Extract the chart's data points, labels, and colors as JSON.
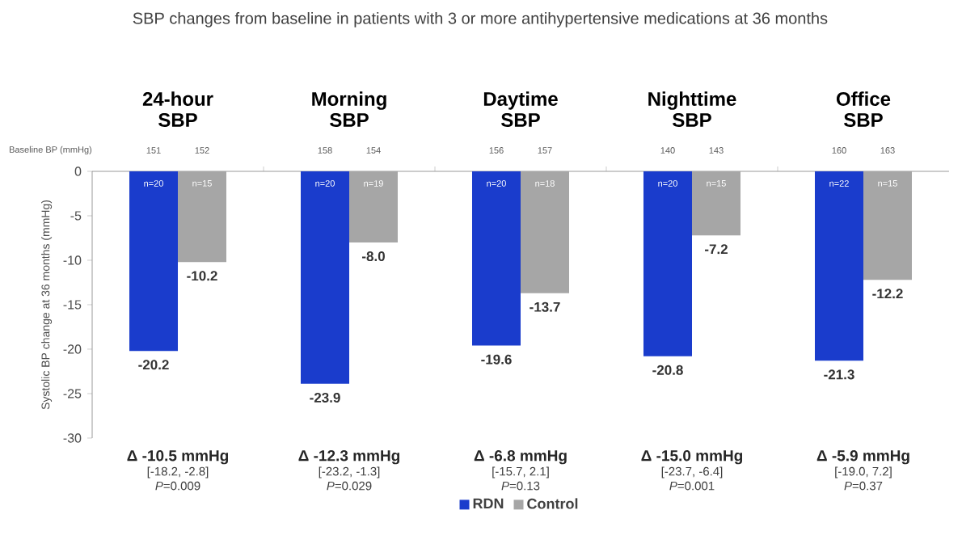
{
  "chart_data": {
    "type": "bar",
    "title": "SBP changes from baseline in patients with 3 or more antihypertensive medications at 36 months",
    "ylabel": "Systolic BP change at 36 months (mmHg)",
    "categories": [
      "24-hour SBP",
      "Morning SBP",
      "Daytime SBP",
      "Nighttime SBP",
      "Office SBP"
    ],
    "series": [
      {
        "name": "RDN",
        "color": "#1a3ccc",
        "values": [
          -20.2,
          -23.9,
          -19.6,
          -20.8,
          -21.3
        ],
        "value_labels": [
          "-20.2",
          "-23.9",
          "-19.6",
          "-20.8",
          "-21.3"
        ]
      },
      {
        "name": "Control",
        "color": "#a6a6a6",
        "values": [
          -10.2,
          -8.0,
          -13.7,
          -7.2,
          -12.2
        ],
        "value_labels": [
          "-10.2",
          "-8.0",
          "-13.7",
          "-7.2",
          "-12.2"
        ]
      }
    ],
    "ylim": [
      -30,
      0
    ],
    "yticks": [
      -30,
      -25,
      -20,
      -15,
      -10,
      -5,
      0
    ],
    "legend": "bottom",
    "grid": false,
    "annotations": [
      "Baseline BP (mmHg)",
      "151",
      "152",
      "158",
      "154",
      "156",
      "157",
      "140",
      "143",
      "160",
      "163",
      "n=20",
      "n=15",
      "n=20",
      "n=19",
      "n=20",
      "n=18",
      "n=20",
      "n=15",
      "n=22",
      "n=15",
      "Δ -10.5 mmHg",
      "[-18.2, -2.8]",
      "*P*=0.009",
      "Δ -12.3 mmHg",
      "[-23.2, -1.3]",
      "*P*=0.029",
      "Δ -6.8 mmHg",
      "[-15.7, 2.1]",
      "*P*=0.13",
      "Δ -15.0 mmHg",
      "[-23.7, -6.4]",
      "*P*=0.001",
      "Δ -5.9 mmHg",
      "[-19.0, 7.2]",
      "*P*=0.37"
    ]
  }
}
